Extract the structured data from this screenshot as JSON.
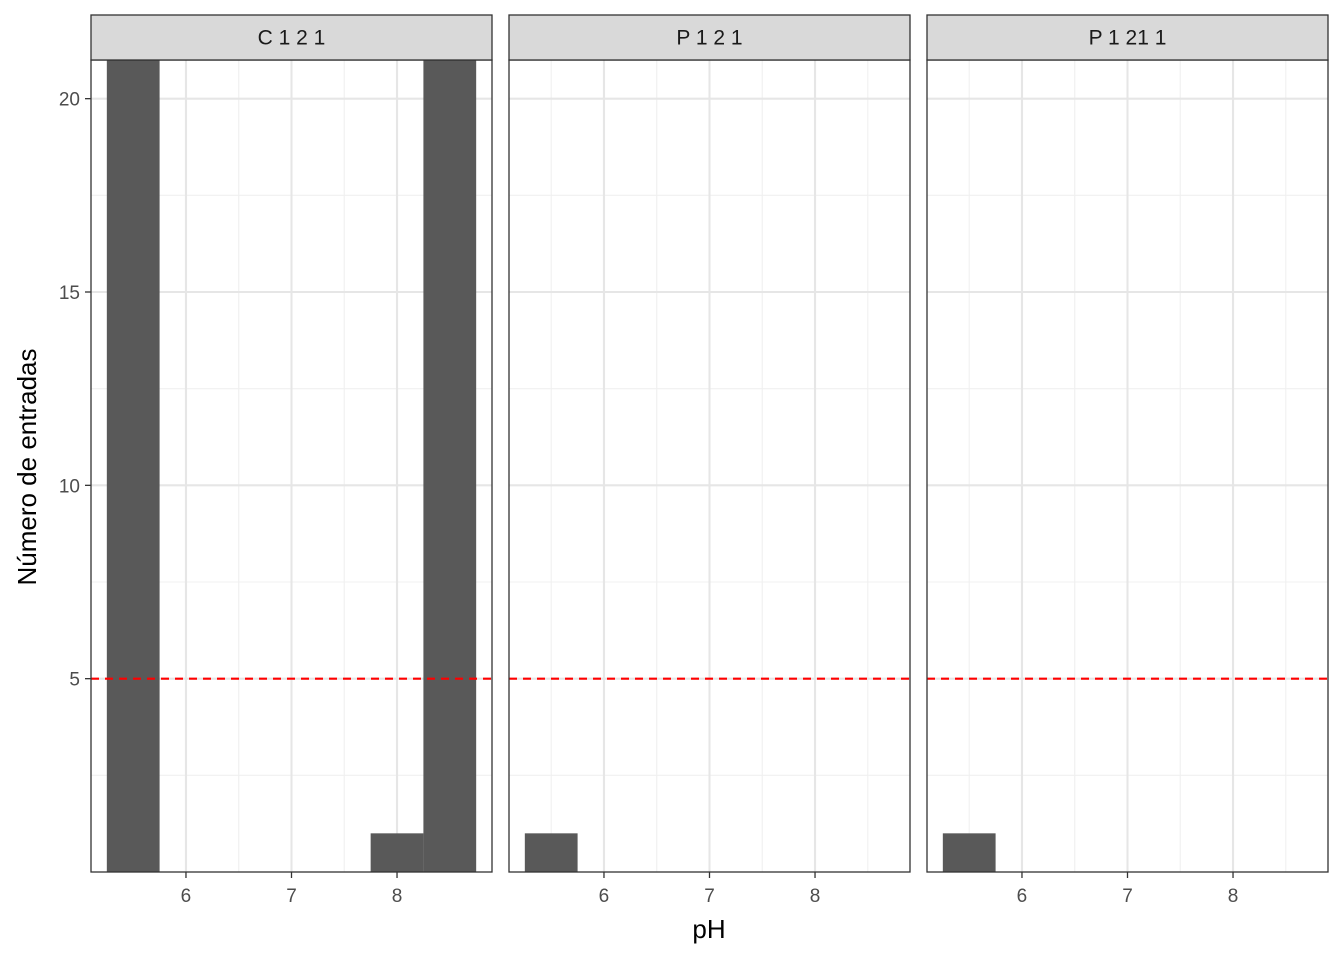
{
  "chart_data": {
    "type": "bar",
    "xlabel": "pH",
    "ylabel": "Número de entradas",
    "xlim": [
      5.1,
      8.9
    ],
    "ylim": [
      0,
      21
    ],
    "x_ticks": [
      "6",
      "7",
      "8"
    ],
    "y_ticks": [
      "5",
      "10",
      "15",
      "20"
    ],
    "bin_width": 0.5,
    "reference_line": {
      "y": 5,
      "color": "#ff0000",
      "style": "dashed"
    },
    "bar_color": "#595959",
    "grid": true,
    "panels": [
      {
        "name": "C 1 2 1",
        "bins": [
          {
            "x0": 5.25,
            "x1": 5.75,
            "count": 21
          },
          {
            "x0": 7.75,
            "x1": 8.25,
            "count": 1
          },
          {
            "x0": 8.25,
            "x1": 8.75,
            "count": 21
          }
        ]
      },
      {
        "name": "P 1 2 1",
        "bins": [
          {
            "x0": 5.25,
            "x1": 5.75,
            "count": 1
          }
        ]
      },
      {
        "name": "P 1 21 1",
        "bins": [
          {
            "x0": 5.25,
            "x1": 5.75,
            "count": 1
          }
        ]
      }
    ]
  }
}
